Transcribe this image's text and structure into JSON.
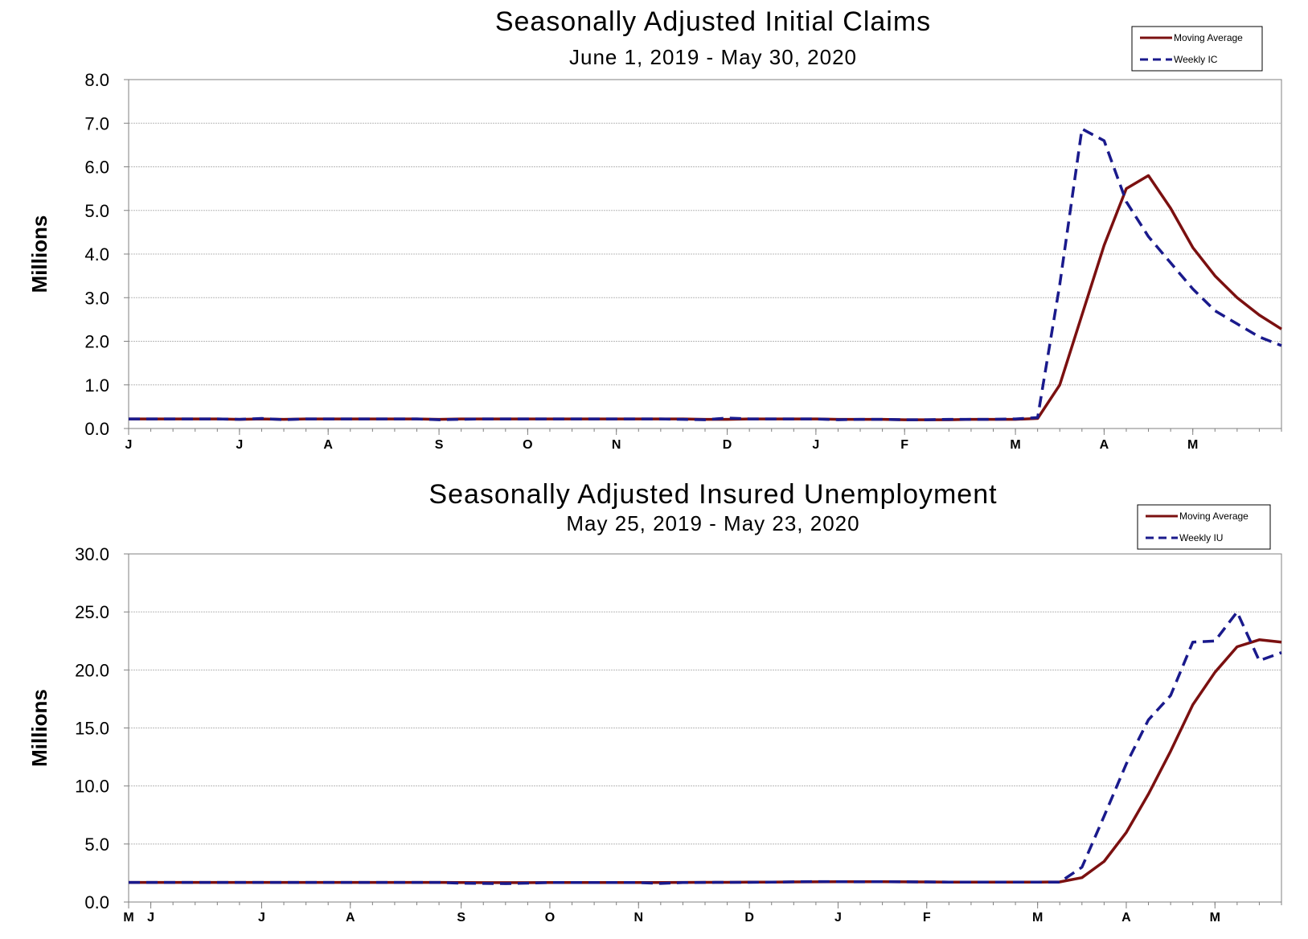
{
  "chart_data": [
    {
      "type": "line",
      "title": "Seasonally Adjusted Initial Claims",
      "subtitle": "June 1, 2019 - May 30, 2020",
      "ylabel": "Millions",
      "xlabel": "",
      "ylim": [
        0,
        8
      ],
      "yticks": [
        "0.0",
        "1.0",
        "2.0",
        "3.0",
        "4.0",
        "5.0",
        "6.0",
        "7.0",
        "8.0"
      ],
      "grid": true,
      "legend_position": "top-right",
      "week_count": 53,
      "month_labels": [
        {
          "label": "J",
          "week": 0
        },
        {
          "label": "J",
          "week": 5
        },
        {
          "label": "A",
          "week": 9
        },
        {
          "label": "S",
          "week": 14
        },
        {
          "label": "O",
          "week": 18
        },
        {
          "label": "N",
          "week": 22
        },
        {
          "label": "D",
          "week": 27
        },
        {
          "label": "J",
          "week": 31
        },
        {
          "label": "F",
          "week": 35
        },
        {
          "label": "M",
          "week": 40
        },
        {
          "label": "A",
          "week": 44
        },
        {
          "label": "M",
          "week": 48
        }
      ],
      "series": [
        {
          "name": "Moving Average",
          "color": "#7b1010",
          "dash": "solid",
          "values": [
            0.22,
            0.22,
            0.22,
            0.22,
            0.22,
            0.21,
            0.22,
            0.21,
            0.22,
            0.22,
            0.22,
            0.22,
            0.22,
            0.22,
            0.21,
            0.22,
            0.22,
            0.22,
            0.22,
            0.22,
            0.22,
            0.22,
            0.22,
            0.22,
            0.22,
            0.22,
            0.21,
            0.21,
            0.22,
            0.22,
            0.22,
            0.22,
            0.21,
            0.21,
            0.21,
            0.2,
            0.2,
            0.2,
            0.21,
            0.21,
            0.21,
            0.23,
            1.0,
            2.6,
            4.2,
            5.5,
            5.8,
            5.05,
            4.15,
            3.5,
            3.0,
            2.6,
            2.28
          ]
        },
        {
          "name": "Weekly IC",
          "color": "#1a1a8c",
          "dash": "dashed",
          "values": [
            0.22,
            0.22,
            0.22,
            0.22,
            0.22,
            0.21,
            0.23,
            0.2,
            0.22,
            0.22,
            0.22,
            0.22,
            0.22,
            0.22,
            0.2,
            0.21,
            0.22,
            0.22,
            0.22,
            0.22,
            0.22,
            0.22,
            0.22,
            0.22,
            0.22,
            0.21,
            0.2,
            0.24,
            0.22,
            0.22,
            0.22,
            0.22,
            0.2,
            0.21,
            0.21,
            0.2,
            0.2,
            0.21,
            0.21,
            0.21,
            0.22,
            0.25,
            3.3,
            6.87,
            6.6,
            5.2,
            4.4,
            3.8,
            3.2,
            2.7,
            2.4,
            2.1,
            1.9
          ]
        }
      ]
    },
    {
      "type": "line",
      "title": "Seasonally Adjusted Insured Unemployment",
      "subtitle": "May 25, 2019 - May 23, 2020",
      "ylabel": "Millions",
      "xlabel": "",
      "ylim": [
        0,
        30
      ],
      "yticks": [
        "0.0",
        "5.0",
        "10.0",
        "15.0",
        "20.0",
        "25.0",
        "30.0"
      ],
      "grid": true,
      "legend_position": "top-right",
      "week_count": 53,
      "month_labels": [
        {
          "label": "M",
          "week": 0
        },
        {
          "label": "J",
          "week": 1
        },
        {
          "label": "J",
          "week": 6
        },
        {
          "label": "A",
          "week": 10
        },
        {
          "label": "S",
          "week": 15
        },
        {
          "label": "O",
          "week": 19
        },
        {
          "label": "N",
          "week": 23
        },
        {
          "label": "D",
          "week": 28
        },
        {
          "label": "J",
          "week": 32
        },
        {
          "label": "F",
          "week": 36
        },
        {
          "label": "M",
          "week": 41
        },
        {
          "label": "A",
          "week": 45
        },
        {
          "label": "M",
          "week": 49
        }
      ],
      "series": [
        {
          "name": "Moving Average",
          "color": "#7b1010",
          "dash": "solid",
          "values": [
            1.69,
            1.69,
            1.69,
            1.69,
            1.69,
            1.69,
            1.69,
            1.69,
            1.69,
            1.69,
            1.69,
            1.69,
            1.69,
            1.69,
            1.69,
            1.68,
            1.67,
            1.67,
            1.67,
            1.68,
            1.68,
            1.68,
            1.68,
            1.68,
            1.68,
            1.69,
            1.7,
            1.7,
            1.71,
            1.72,
            1.73,
            1.74,
            1.75,
            1.75,
            1.75,
            1.74,
            1.73,
            1.72,
            1.71,
            1.71,
            1.71,
            1.72,
            1.73,
            2.1,
            3.5,
            6.0,
            9.3,
            13.0,
            17.0,
            19.8,
            22.0,
            22.6,
            22.4
          ]
        },
        {
          "name": "Weekly IU",
          "color": "#1a1a8c",
          "dash": "dashed",
          "values": [
            1.69,
            1.69,
            1.69,
            1.69,
            1.69,
            1.69,
            1.69,
            1.69,
            1.69,
            1.69,
            1.69,
            1.69,
            1.69,
            1.69,
            1.69,
            1.62,
            1.6,
            1.59,
            1.63,
            1.68,
            1.68,
            1.68,
            1.68,
            1.68,
            1.6,
            1.68,
            1.69,
            1.7,
            1.7,
            1.71,
            1.74,
            1.76,
            1.75,
            1.74,
            1.75,
            1.74,
            1.73,
            1.72,
            1.71,
            1.71,
            1.71,
            1.71,
            1.71,
            3.0,
            7.4,
            11.9,
            15.7,
            17.8,
            22.4,
            22.5,
            25.0,
            20.8,
            21.5
          ]
        }
      ]
    }
  ]
}
